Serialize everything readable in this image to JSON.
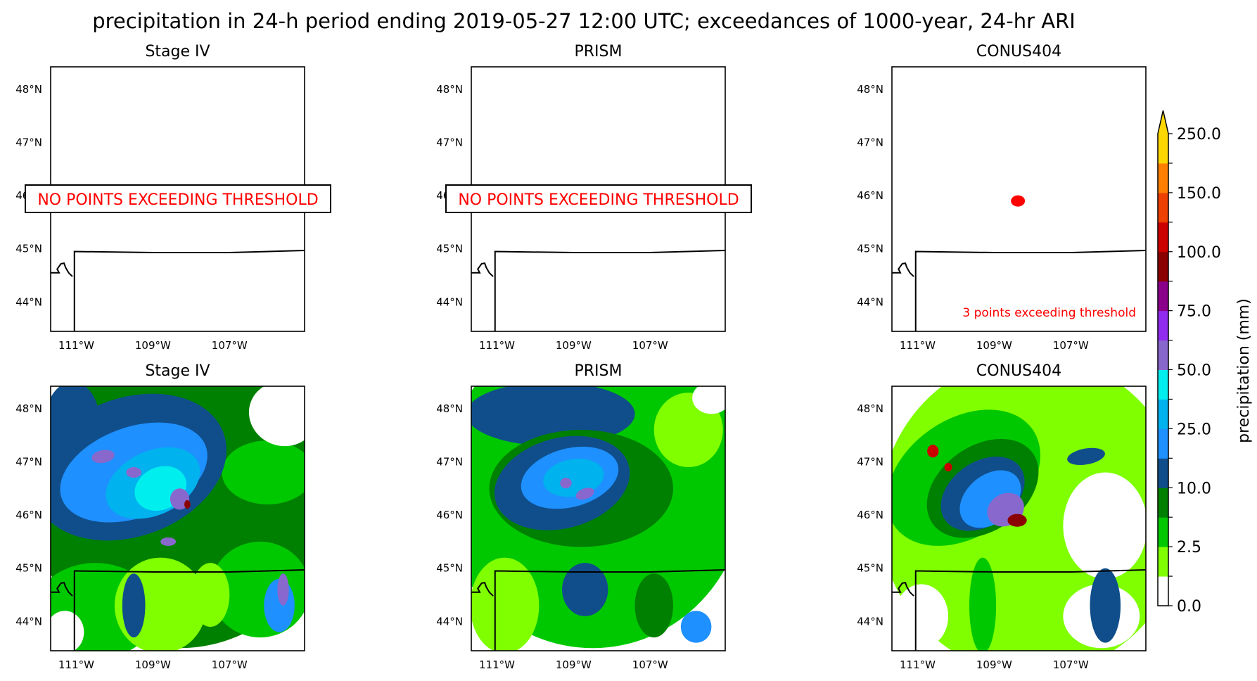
{
  "figure": {
    "title": "precipitation in 24-h period ending 2019-05-27 12:00 UTC; exceedances of 1000-year, 24-hr ARI"
  },
  "map_extent": {
    "lon_min": -111.67,
    "lon_max": -105.04,
    "lat_min": 43.45,
    "lat_max": 48.42
  },
  "lat_ticks": [
    {
      "value": 48,
      "label": "48°N"
    },
    {
      "value": 47,
      "label": "47°N"
    },
    {
      "value": 46,
      "label": "46°N"
    },
    {
      "value": 45,
      "label": "45°N"
    },
    {
      "value": 44,
      "label": "44°N"
    }
  ],
  "lon_ticks": [
    {
      "value": -111,
      "label": "111°W"
    },
    {
      "value": -109,
      "label": "109°W"
    },
    {
      "value": -107,
      "label": "107°W"
    }
  ],
  "panels": [
    {
      "row": "exceedance",
      "title": "Stage IV",
      "note": "NO POINTS EXCEEDING THRESHOLD",
      "note_style": "boxed"
    },
    {
      "row": "exceedance",
      "title": "PRISM",
      "note": "NO POINTS EXCEEDING THRESHOLD",
      "note_style": "boxed"
    },
    {
      "row": "exceedance",
      "title": "CONUS404",
      "note": "3 points exceeding threshold",
      "note_style": "corner",
      "exceedance_points": [
        {
          "lon": -108.38,
          "lat": 45.9
        }
      ]
    },
    {
      "row": "precipitation",
      "title": "Stage IV"
    },
    {
      "row": "precipitation",
      "title": "PRISM"
    },
    {
      "row": "precipitation",
      "title": "CONUS404"
    }
  ],
  "colorbar": {
    "label": "precipitation (mm)",
    "extend": "max",
    "tick_labels": [
      "0.0",
      "2.5",
      "10.0",
      "25.0",
      "50.0",
      "75.0",
      "100.0",
      "150.0",
      "250.0"
    ],
    "colors": [
      "#ffffff",
      "#7fff00",
      "#00c800",
      "#008000",
      "#104e8b",
      "#1e90ff",
      "#00b2ee",
      "#00eeee",
      "#8968cd",
      "#912cee",
      "#8b008b",
      "#8b0000",
      "#cd0000",
      "#ee4000",
      "#ff7f00",
      "#ffd700"
    ]
  },
  "exceedance_color": "#ff0000"
}
